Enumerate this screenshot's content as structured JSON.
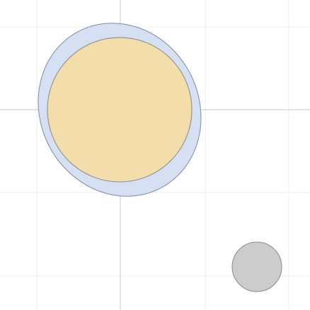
{
  "canvas": {
    "background": "#ffffff",
    "grid_color": "#ececec",
    "axis_color": "#c9c9c9"
  },
  "shapes": {
    "blue_ellipse": {
      "fill": "#d5e0f3",
      "stroke": "#7f8aa0"
    },
    "yellow_circle": {
      "fill": "#f3deab",
      "stroke": "#8a8a8a"
    },
    "gray_circle": {
      "fill": "#cccccc",
      "stroke": "#8a8a8a"
    }
  }
}
